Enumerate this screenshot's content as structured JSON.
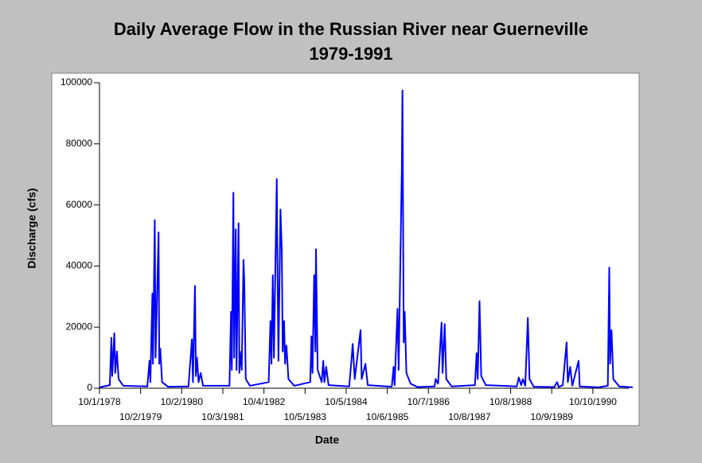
{
  "chart_data": {
    "type": "line",
    "title": "Daily Average Flow in the Russian River near Guerneville",
    "subtitle": "1979-1991",
    "xlabel": "Date",
    "ylabel": "Discharge (cfs)",
    "xlim": [
      "1978-10-01",
      "1991-09-30"
    ],
    "ylim": [
      0,
      100000
    ],
    "yticks": [
      0,
      20000,
      40000,
      60000,
      80000,
      100000
    ],
    "xticks": [
      {
        "value": "1978-10-01",
        "label": "10/1/1978"
      },
      {
        "value": "1979-10-02",
        "label": "10/2/1979"
      },
      {
        "value": "1980-10-02",
        "label": "10/2/1980"
      },
      {
        "value": "1981-10-03",
        "label": "10/3/1981"
      },
      {
        "value": "1982-10-04",
        "label": "10/4/1982"
      },
      {
        "value": "1983-10-05",
        "label": "10/5/1983"
      },
      {
        "value": "1984-10-05",
        "label": "10/5/1984"
      },
      {
        "value": "1985-10-06",
        "label": "10/6/1985"
      },
      {
        "value": "1986-10-07",
        "label": "10/7/1986"
      },
      {
        "value": "1987-10-08",
        "label": "10/8/1987"
      },
      {
        "value": "1988-10-08",
        "label": "10/8/1988"
      },
      {
        "value": "1989-10-09",
        "label": "10/9/1989"
      },
      {
        "value": "1990-10-10",
        "label": "10/10/1990"
      }
    ],
    "grid": false,
    "color": "#0000ff",
    "x": [
      "1978-10-01",
      "1979-01-01",
      "1979-01-15",
      "1979-01-22",
      "1979-02-10",
      "1979-02-18",
      "1979-03-05",
      "1979-03-20",
      "1979-05-01",
      "1979-12-01",
      "1979-12-20",
      "1979-12-28",
      "1980-01-15",
      "1980-01-20",
      "1980-02-05",
      "1980-02-12",
      "1980-03-10",
      "1980-03-16",
      "1980-03-25",
      "1980-04-10",
      "1980-06-01",
      "1980-12-01",
      "1981-01-01",
      "1981-01-10",
      "1981-01-28",
      "1981-02-05",
      "1981-02-15",
      "1981-03-01",
      "1981-03-20",
      "1981-04-10",
      "1981-12-01",
      "1981-12-15",
      "1981-12-22",
      "1982-01-05",
      "1982-01-12",
      "1982-01-26",
      "1982-02-02",
      "1982-02-20",
      "1982-02-27",
      "1982-03-05",
      "1982-03-20",
      "1982-04-05",
      "1982-04-12",
      "1982-04-25",
      "1982-06-01",
      "1982-11-15",
      "1982-12-01",
      "1982-12-10",
      "1982-12-22",
      "1983-01-01",
      "1983-01-26",
      "1983-02-02",
      "1983-02-10",
      "1983-02-28",
      "1983-03-12",
      "1983-03-20",
      "1983-04-01",
      "1983-04-10",
      "1983-04-22",
      "1983-05-10",
      "1983-07-01",
      "1983-11-20",
      "1983-12-01",
      "1983-12-10",
      "1983-12-25",
      "1984-01-05",
      "1984-01-10",
      "1984-01-25",
      "1984-03-01",
      "1984-03-15",
      "1984-03-25",
      "1984-04-10",
      "1984-05-01",
      "1984-11-01",
      "1984-11-25",
      "1984-12-02",
      "1984-12-20",
      "1985-02-10",
      "1985-02-20",
      "1985-03-25",
      "1985-04-15",
      "1985-11-15",
      "1985-12-01",
      "1985-12-10",
      "1986-01-05",
      "1986-01-15",
      "1986-02-12",
      "1986-02-18",
      "1986-03-01",
      "1986-03-10",
      "1986-03-25",
      "1986-05-01",
      "1986-07-01",
      "1986-12-01",
      "1986-12-10",
      "1987-01-01",
      "1987-02-01",
      "1987-02-10",
      "1987-03-01",
      "1987-03-15",
      "1987-05-01",
      "1987-11-25",
      "1987-12-10",
      "1987-12-20",
      "1988-01-05",
      "1988-01-20",
      "1988-03-01",
      "1988-12-01",
      "1988-12-20",
      "1989-01-10",
      "1989-01-25",
      "1989-02-15",
      "1989-03-10",
      "1989-03-25",
      "1989-05-01",
      "1989-11-01",
      "1989-11-25",
      "1989-12-10",
      "1990-01-15",
      "1990-02-18",
      "1990-03-01",
      "1990-03-22",
      "1990-04-10",
      "1990-06-05",
      "1990-06-15",
      "1990-12-01",
      "1991-02-20",
      "1991-03-05",
      "1991-03-12",
      "1991-03-25",
      "1991-04-10",
      "1991-06-01",
      "1991-09-30"
    ],
    "values": [
      300,
      1000,
      16500,
      4000,
      18000,
      5000,
      12000,
      3000,
      800,
      600,
      9000,
      2000,
      31000,
      8000,
      55000,
      10000,
      51000,
      8000,
      13000,
      2000,
      500,
      600,
      16000,
      2000,
      33500,
      4000,
      10000,
      2000,
      5000,
      800,
      800,
      25000,
      6000,
      64000,
      10000,
      52000,
      6000,
      54000,
      5000,
      12000,
      6000,
      42000,
      35000,
      3000,
      800,
      2000,
      22000,
      8000,
      37000,
      10000,
      68500,
      38000,
      9000,
      58500,
      45000,
      12000,
      22000,
      8000,
      14000,
      3000,
      800,
      2000,
      17000,
      5000,
      37000,
      12000,
      45500,
      6000,
      2000,
      9000,
      2000,
      7000,
      1000,
      600,
      11000,
      14500,
      3000,
      19000,
      3000,
      8000,
      1000,
      500,
      7000,
      1000,
      26000,
      6000,
      71000,
      97500,
      15000,
      25000,
      5000,
      1500,
      400,
      600,
      3000,
      1500,
      21500,
      5000,
      21000,
      3000,
      600,
      1000,
      11500,
      3000,
      28500,
      4000,
      1000,
      600,
      3500,
      1000,
      3000,
      800,
      23000,
      3000,
      500,
      400,
      2000,
      400,
      1000,
      15000,
      2000,
      7000,
      800,
      9000,
      600,
      300,
      800,
      39500,
      8000,
      19000,
      3000,
      600,
      300
    ]
  }
}
